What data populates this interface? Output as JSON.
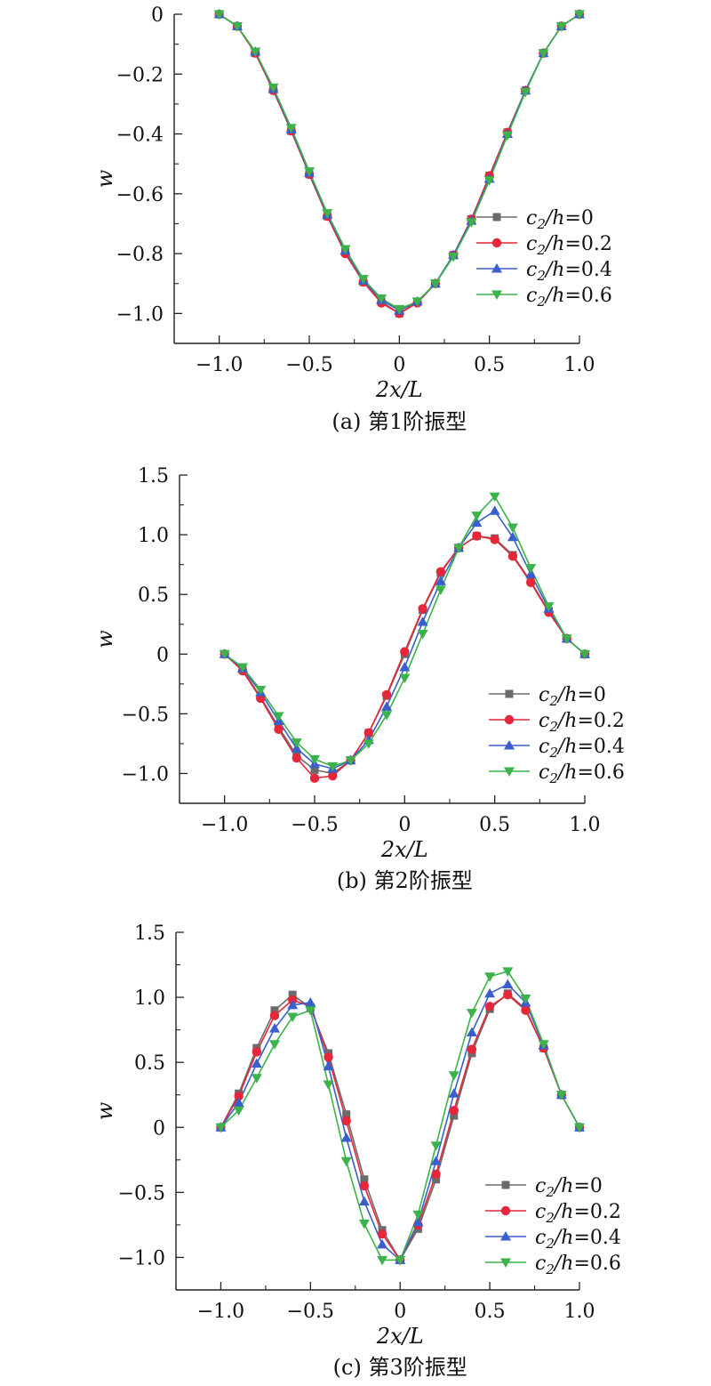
{
  "figure_colors": {
    "series": [
      "#6b6b6b",
      "#e6263a",
      "#3a5fcd",
      "#3cb34a"
    ]
  },
  "chart_data": [
    {
      "type": "line",
      "caption": "(a) 第1阶振型",
      "xlabel": "2x/L",
      "ylabel": "w",
      "xlim": [
        -1.25,
        1.0
      ],
      "ylim": [
        -1.1,
        0.0
      ],
      "xticks": [
        "-1.0",
        "-0.5",
        "0",
        "0.5",
        "1.0"
      ],
      "yticks": [
        "0",
        "-0.2",
        "-0.4",
        "-0.6",
        "-0.8",
        "-1.0"
      ],
      "legend_position": "right",
      "x": [
        -1.0,
        -0.9,
        -0.8,
        -0.7,
        -0.6,
        -0.5,
        -0.4,
        -0.3,
        -0.2,
        -0.1,
        0.0,
        0.1,
        0.2,
        0.3,
        0.4,
        0.5,
        0.6,
        0.7,
        0.8,
        0.9,
        1.0
      ],
      "series": [
        {
          "name": "c2/h=0",
          "marker": "square",
          "values": [
            0,
            -0.04,
            -0.13,
            -0.25,
            -0.39,
            -0.535,
            -0.675,
            -0.795,
            -0.895,
            -0.96,
            -1.0,
            -0.96,
            -0.9,
            -0.805,
            -0.685,
            -0.54,
            -0.395,
            -0.255,
            -0.13,
            -0.04,
            0
          ]
        },
        {
          "name": "c2/h=0.2",
          "marker": "circle",
          "values": [
            0,
            -0.04,
            -0.13,
            -0.255,
            -0.39,
            -0.535,
            -0.675,
            -0.8,
            -0.895,
            -0.965,
            -1.0,
            -0.965,
            -0.9,
            -0.805,
            -0.685,
            -0.54,
            -0.395,
            -0.255,
            -0.13,
            -0.04,
            0
          ]
        },
        {
          "name": "c2/h=0.4",
          "marker": "triangle-up",
          "values": [
            0,
            -0.04,
            -0.125,
            -0.25,
            -0.385,
            -0.53,
            -0.67,
            -0.79,
            -0.89,
            -0.955,
            -0.99,
            -0.96,
            -0.9,
            -0.805,
            -0.69,
            -0.55,
            -0.4,
            -0.255,
            -0.13,
            -0.04,
            0
          ]
        },
        {
          "name": "c2/h=0.6",
          "marker": "triangle-down",
          "values": [
            0,
            -0.04,
            -0.125,
            -0.245,
            -0.38,
            -0.525,
            -0.665,
            -0.785,
            -0.885,
            -0.95,
            -0.985,
            -0.96,
            -0.9,
            -0.81,
            -0.695,
            -0.555,
            -0.405,
            -0.26,
            -0.13,
            -0.04,
            0
          ]
        }
      ]
    },
    {
      "type": "line",
      "caption": "(b) 第2阶振型",
      "xlabel": "2x/L",
      "ylabel": "w",
      "xlim": [
        -1.25,
        1.0
      ],
      "ylim": [
        -1.25,
        1.5
      ],
      "xticks": [
        "-1.0",
        "-0.5",
        "0",
        "0.5",
        "1.0"
      ],
      "yticks": [
        "1.5",
        "1.0",
        "0.5",
        "0",
        "-0.5",
        "-1.0"
      ],
      "legend_position": "bottom-right",
      "x": [
        -1.0,
        -0.9,
        -0.8,
        -0.7,
        -0.6,
        -0.5,
        -0.4,
        -0.3,
        -0.2,
        -0.1,
        0.0,
        0.1,
        0.2,
        0.3,
        0.4,
        0.5,
        0.6,
        0.7,
        0.8,
        0.9,
        1.0
      ],
      "series": [
        {
          "name": "c2/h=0",
          "marker": "square",
          "values": [
            0,
            -0.13,
            -0.36,
            -0.61,
            -0.85,
            -0.97,
            -1.0,
            -0.89,
            -0.66,
            -0.35,
            0.0,
            0.37,
            0.68,
            0.89,
            0.99,
            0.97,
            0.83,
            0.61,
            0.36,
            0.13,
            0
          ]
        },
        {
          "name": "c2/h=0.2",
          "marker": "circle",
          "values": [
            0,
            -0.14,
            -0.37,
            -0.63,
            -0.87,
            -1.04,
            -1.02,
            -0.89,
            -0.66,
            -0.34,
            0.02,
            0.38,
            0.69,
            0.89,
            0.99,
            0.96,
            0.82,
            0.6,
            0.35,
            0.13,
            0
          ]
        },
        {
          "name": "c2/h=0.4",
          "marker": "triangle-up",
          "values": [
            0,
            -0.12,
            -0.32,
            -0.56,
            -0.79,
            -0.92,
            -0.96,
            -0.89,
            -0.72,
            -0.44,
            -0.11,
            0.27,
            0.61,
            0.89,
            1.1,
            1.2,
            0.98,
            0.67,
            0.38,
            0.13,
            0
          ]
        },
        {
          "name": "c2/h=0.6",
          "marker": "triangle-down",
          "values": [
            0,
            -0.11,
            -0.3,
            -0.52,
            -0.74,
            -0.88,
            -0.94,
            -0.89,
            -0.75,
            -0.51,
            -0.2,
            0.17,
            0.54,
            0.89,
            1.16,
            1.32,
            1.06,
            0.72,
            0.4,
            0.13,
            0
          ]
        }
      ]
    },
    {
      "type": "line",
      "caption": "(c) 第3阶振型",
      "xlabel": "2x/L",
      "ylabel": "w",
      "xlim": [
        -1.25,
        1.0
      ],
      "ylim": [
        -1.25,
        1.5
      ],
      "xticks": [
        "-1.0",
        "-0.5",
        "0",
        "0.5",
        "1.0"
      ],
      "yticks": [
        "1.5",
        "1.0",
        "0.5",
        "0",
        "-0.5",
        "-1.0"
      ],
      "legend_position": "bottom-right",
      "x": [
        -1.0,
        -0.9,
        -0.8,
        -0.7,
        -0.6,
        -0.5,
        -0.4,
        -0.3,
        -0.2,
        -0.1,
        0.0,
        0.1,
        0.2,
        0.3,
        0.4,
        0.5,
        0.6,
        0.7,
        0.8,
        0.9,
        1.0
      ],
      "series": [
        {
          "name": "c2/h=0",
          "marker": "square",
          "values": [
            0,
            0.26,
            0.61,
            0.9,
            1.02,
            0.92,
            0.57,
            0.1,
            -0.4,
            -0.79,
            -1.02,
            -0.78,
            -0.4,
            0.09,
            0.57,
            0.91,
            1.03,
            0.91,
            0.61,
            0.25,
            0
          ]
        },
        {
          "name": "c2/h=0.2",
          "marker": "circle",
          "values": [
            0,
            0.24,
            0.58,
            0.86,
            0.98,
            0.93,
            0.54,
            0.05,
            -0.45,
            -0.82,
            -1.02,
            -0.75,
            -0.36,
            0.13,
            0.6,
            0.93,
            1.02,
            0.9,
            0.61,
            0.25,
            0
          ]
        },
        {
          "name": "c2/h=0.4",
          "marker": "triangle-up",
          "values": [
            0,
            0.19,
            0.49,
            0.76,
            0.94,
            0.96,
            0.47,
            -0.08,
            -0.57,
            -0.9,
            -1.02,
            -0.73,
            -0.26,
            0.26,
            0.73,
            1.03,
            1.1,
            0.96,
            0.63,
            0.25,
            0
          ]
        },
        {
          "name": "c2/h=0.6",
          "marker": "triangle-down",
          "values": [
            0,
            0.13,
            0.38,
            0.64,
            0.85,
            0.9,
            0.33,
            -0.26,
            -0.74,
            -1.02,
            -1.02,
            -0.67,
            -0.14,
            0.4,
            0.88,
            1.16,
            1.2,
            0.99,
            0.64,
            0.25,
            0
          ]
        }
      ]
    }
  ]
}
